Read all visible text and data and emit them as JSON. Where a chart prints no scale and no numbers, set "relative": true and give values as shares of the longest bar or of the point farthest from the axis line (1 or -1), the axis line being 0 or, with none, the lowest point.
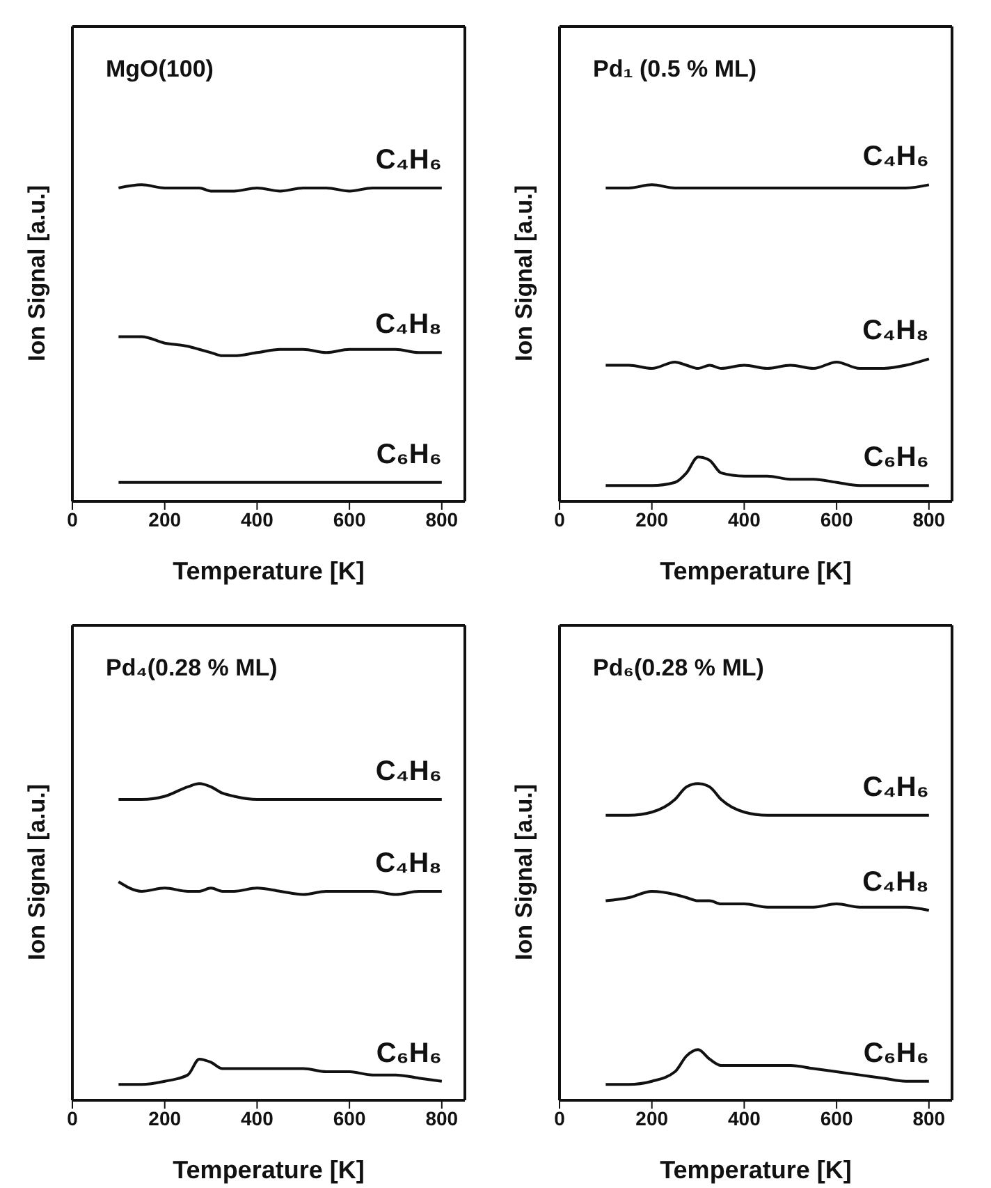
{
  "chart_data": [
    {
      "type": "line",
      "title": "MgO(100)",
      "xlabel": "Temperature [K]",
      "ylabel": "Ion Signal [a.u.]",
      "relative": true,
      "xlim": [
        0,
        850
      ],
      "xticks": [
        0,
        200,
        400,
        600,
        800
      ],
      "tick_labels": "x",
      "marker": "none",
      "line_style": "solid",
      "x": [
        100,
        150,
        200,
        250,
        275,
        300,
        325,
        350,
        400,
        450,
        500,
        550,
        600,
        650,
        700,
        750,
        800
      ],
      "series": [
        {
          "name": "C₄H₆",
          "color": "#111111",
          "values": [
            0.99,
            1.0,
            0.99,
            0.99,
            0.99,
            0.98,
            0.98,
            0.98,
            0.99,
            0.98,
            0.99,
            0.99,
            0.98,
            0.99,
            0.99,
            0.99,
            0.99
          ]
        },
        {
          "name": "C₄H₈",
          "color": "#111111",
          "values": [
            0.52,
            0.52,
            0.5,
            0.49,
            0.48,
            0.47,
            0.46,
            0.46,
            0.47,
            0.48,
            0.48,
            0.47,
            0.48,
            0.48,
            0.48,
            0.47,
            0.47
          ]
        },
        {
          "name": "C₆H₆",
          "color": "#111111",
          "values": [
            0.06,
            0.06,
            0.06,
            0.06,
            0.06,
            0.06,
            0.06,
            0.06,
            0.06,
            0.06,
            0.06,
            0.06,
            0.06,
            0.06,
            0.06,
            0.06,
            0.06
          ]
        }
      ]
    },
    {
      "type": "line",
      "title": "Pd₁ (0.5 % ML)",
      "xlabel": "Temperature [K]",
      "ylabel": "Ion Signal [a.u.]",
      "relative": true,
      "xlim": [
        0,
        850
      ],
      "xticks": [
        0,
        200,
        400,
        600,
        800
      ],
      "tick_labels": "x",
      "marker": "none",
      "line_style": "solid",
      "x": [
        100,
        150,
        200,
        250,
        275,
        300,
        325,
        350,
        400,
        450,
        500,
        550,
        600,
        650,
        700,
        750,
        800
      ],
      "series": [
        {
          "name": "C₄H₆",
          "color": "#111111",
          "values": [
            0.99,
            0.99,
            1.0,
            0.99,
            0.99,
            0.99,
            0.99,
            0.99,
            0.99,
            0.99,
            0.99,
            0.99,
            0.99,
            0.99,
            0.99,
            0.99,
            1.0
          ]
        },
        {
          "name": "C₄H₈",
          "color": "#111111",
          "values": [
            0.43,
            0.43,
            0.42,
            0.44,
            0.43,
            0.42,
            0.43,
            0.42,
            0.43,
            0.42,
            0.43,
            0.42,
            0.44,
            0.42,
            0.42,
            0.43,
            0.45
          ]
        },
        {
          "name": "C₆H₆",
          "color": "#111111",
          "values": [
            0.05,
            0.05,
            0.05,
            0.06,
            0.09,
            0.14,
            0.13,
            0.09,
            0.08,
            0.08,
            0.07,
            0.07,
            0.06,
            0.05,
            0.05,
            0.05,
            0.05
          ]
        }
      ]
    },
    {
      "type": "line",
      "title": "Pd₄(0.28 % ML)",
      "xlabel": "Temperature [K]",
      "ylabel": "Ion Signal [a.u.]",
      "relative": true,
      "xlim": [
        0,
        850
      ],
      "xticks": [
        0,
        200,
        400,
        600,
        800
      ],
      "tick_labels": "x",
      "marker": "none",
      "line_style": "solid",
      "x": [
        100,
        150,
        200,
        250,
        275,
        300,
        325,
        350,
        400,
        450,
        500,
        550,
        600,
        650,
        700,
        750,
        800
      ],
      "series": [
        {
          "name": "C₄H₆",
          "color": "#111111",
          "values": [
            0.95,
            0.95,
            0.96,
            0.99,
            1.0,
            0.99,
            0.97,
            0.96,
            0.95,
            0.95,
            0.95,
            0.95,
            0.95,
            0.95,
            0.95,
            0.95,
            0.95
          ]
        },
        {
          "name": "C₄H₈",
          "color": "#111111",
          "values": [
            0.69,
            0.66,
            0.67,
            0.66,
            0.66,
            0.67,
            0.66,
            0.66,
            0.67,
            0.66,
            0.65,
            0.66,
            0.66,
            0.66,
            0.65,
            0.66,
            0.66
          ]
        },
        {
          "name": "C₆H₆",
          "color": "#111111",
          "values": [
            0.05,
            0.05,
            0.06,
            0.08,
            0.13,
            0.12,
            0.1,
            0.1,
            0.1,
            0.1,
            0.1,
            0.09,
            0.09,
            0.08,
            0.08,
            0.07,
            0.06
          ]
        }
      ]
    },
    {
      "type": "line",
      "title": "Pd₆(0.28 % ML)",
      "xlabel": "Temperature [K]",
      "ylabel": "Ion Signal [a.u.]",
      "relative": true,
      "xlim": [
        0,
        850
      ],
      "xticks": [
        0,
        200,
        400,
        600,
        800
      ],
      "tick_labels": "x",
      "marker": "none",
      "line_style": "solid",
      "x": [
        100,
        150,
        200,
        250,
        275,
        300,
        325,
        350,
        400,
        450,
        500,
        550,
        600,
        650,
        700,
        750,
        800
      ],
      "series": [
        {
          "name": "C₄H₆",
          "color": "#111111",
          "values": [
            0.9,
            0.9,
            0.91,
            0.95,
            0.99,
            1.0,
            0.99,
            0.95,
            0.91,
            0.9,
            0.9,
            0.9,
            0.9,
            0.9,
            0.9,
            0.9,
            0.9
          ]
        },
        {
          "name": "C₄H₈",
          "color": "#111111",
          "values": [
            0.63,
            0.64,
            0.66,
            0.65,
            0.64,
            0.63,
            0.63,
            0.62,
            0.62,
            0.61,
            0.61,
            0.61,
            0.62,
            0.61,
            0.61,
            0.61,
            0.6
          ]
        },
        {
          "name": "C₆H₆",
          "color": "#111111",
          "values": [
            0.05,
            0.05,
            0.06,
            0.09,
            0.14,
            0.16,
            0.13,
            0.11,
            0.11,
            0.11,
            0.11,
            0.1,
            0.09,
            0.08,
            0.07,
            0.06,
            0.06
          ]
        }
      ]
    }
  ]
}
